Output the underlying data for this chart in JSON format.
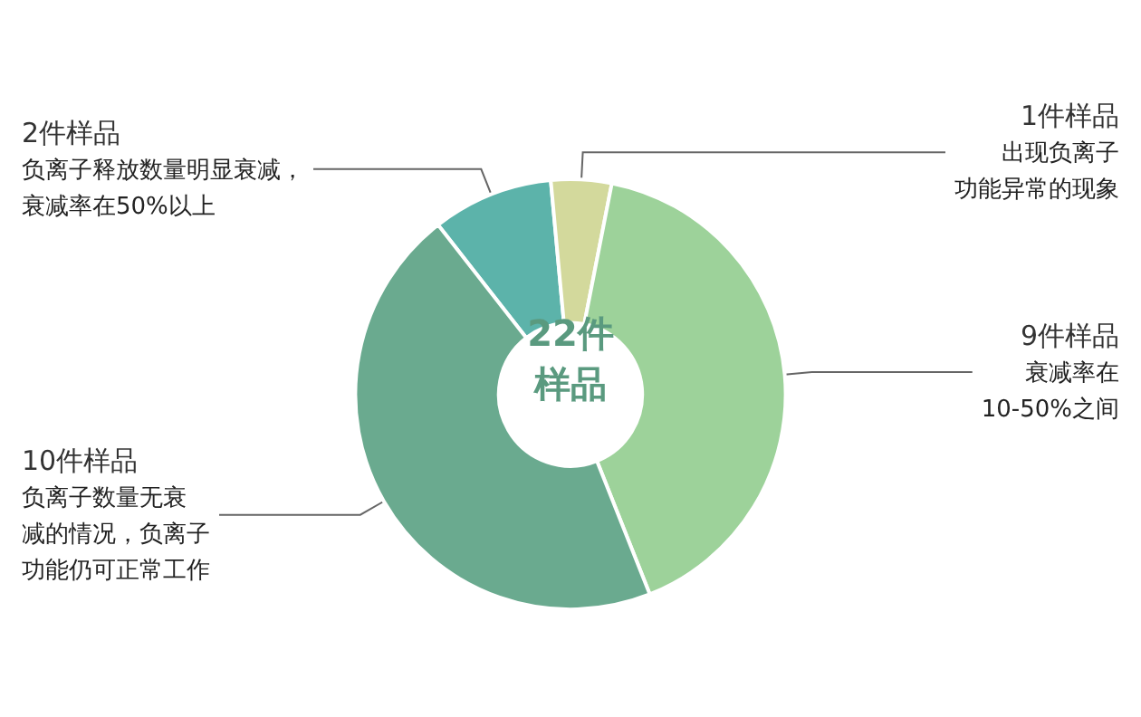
{
  "chart_data": {
    "type": "donut",
    "title": "22件样品",
    "categories": [
      "负离子释放数量明显衰减，衰减率在50%以上",
      "出现负离子功能异常的现象",
      "衰减率在10-50%之间",
      "负离子数量无衰减的情况，负离子功能仍可正常工作"
    ],
    "values": [
      2,
      1,
      9,
      10
    ],
    "value_labels": [
      "2件样品",
      "1件样品",
      "9件样品",
      "10件样品"
    ],
    "colors": [
      "#5cb3aa",
      "#d3d99c",
      "#9dd29a",
      "#6aaa8f"
    ],
    "legend": false
  }
}
